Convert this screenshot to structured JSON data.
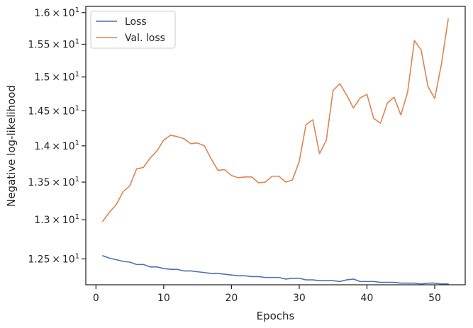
{
  "chart_data": {
    "type": "line",
    "xlabel": "Epochs",
    "ylabel": "Negative log-likelihood",
    "yscale": "log",
    "xlim": [
      -1.5,
      54.5
    ],
    "ylim": [
      12.18,
      16.1
    ],
    "xticks": [
      0,
      10,
      20,
      30,
      40,
      50
    ],
    "yticks": [
      {
        "value": 12.5,
        "mant": "1.25",
        "exp": "1"
      },
      {
        "value": 13.0,
        "mant": "1.3",
        "exp": "1"
      },
      {
        "value": 13.5,
        "mant": "1.35",
        "exp": "1"
      },
      {
        "value": 14.0,
        "mant": "1.4",
        "exp": "1"
      },
      {
        "value": 14.5,
        "mant": "1.45",
        "exp": "1"
      },
      {
        "value": 15.0,
        "mant": "1.5",
        "exp": "1"
      },
      {
        "value": 15.5,
        "mant": "1.55",
        "exp": "1"
      },
      {
        "value": 16.0,
        "mant": "1.6",
        "exp": "1"
      }
    ],
    "tick_times": "×",
    "tick_base": "10",
    "legend_position": "top-left",
    "grid": false,
    "x": [
      1,
      2,
      3,
      4,
      5,
      6,
      7,
      8,
      9,
      10,
      11,
      12,
      13,
      14,
      15,
      16,
      17,
      18,
      19,
      20,
      21,
      22,
      23,
      24,
      25,
      26,
      27,
      28,
      29,
      30,
      31,
      32,
      33,
      34,
      35,
      36,
      37,
      38,
      39,
      40,
      41,
      42,
      43,
      44,
      45,
      46,
      47,
      48,
      49,
      50,
      51,
      52
    ],
    "series": [
      {
        "name": "Loss",
        "color": "#4c72b0",
        "values": [
          12.54,
          12.51,
          12.49,
          12.47,
          12.46,
          12.43,
          12.43,
          12.4,
          12.4,
          12.38,
          12.37,
          12.37,
          12.35,
          12.35,
          12.34,
          12.33,
          12.32,
          12.32,
          12.31,
          12.3,
          12.29,
          12.29,
          12.28,
          12.28,
          12.27,
          12.27,
          12.27,
          12.25,
          12.26,
          12.26,
          12.24,
          12.24,
          12.23,
          12.23,
          12.23,
          12.22,
          12.24,
          12.25,
          12.22,
          12.22,
          12.22,
          12.21,
          12.21,
          12.21,
          12.2,
          12.2,
          12.2,
          12.19,
          12.2,
          12.2,
          12.19,
          12.19
        ]
      },
      {
        "name": "Val. loss",
        "color": "#dd8452",
        "values": [
          12.98,
          13.1,
          13.2,
          13.37,
          13.45,
          13.68,
          13.7,
          13.83,
          13.93,
          14.08,
          14.15,
          14.13,
          14.1,
          14.03,
          14.04,
          14.0,
          13.82,
          13.66,
          13.67,
          13.59,
          13.56,
          13.57,
          13.57,
          13.49,
          13.5,
          13.58,
          13.58,
          13.5,
          13.53,
          13.78,
          14.3,
          14.37,
          13.89,
          14.08,
          14.8,
          14.9,
          14.73,
          14.54,
          14.69,
          14.74,
          14.39,
          14.32,
          14.61,
          14.7,
          14.44,
          14.77,
          15.56,
          15.41,
          14.86,
          14.68,
          15.2,
          15.9
        ]
      }
    ]
  }
}
